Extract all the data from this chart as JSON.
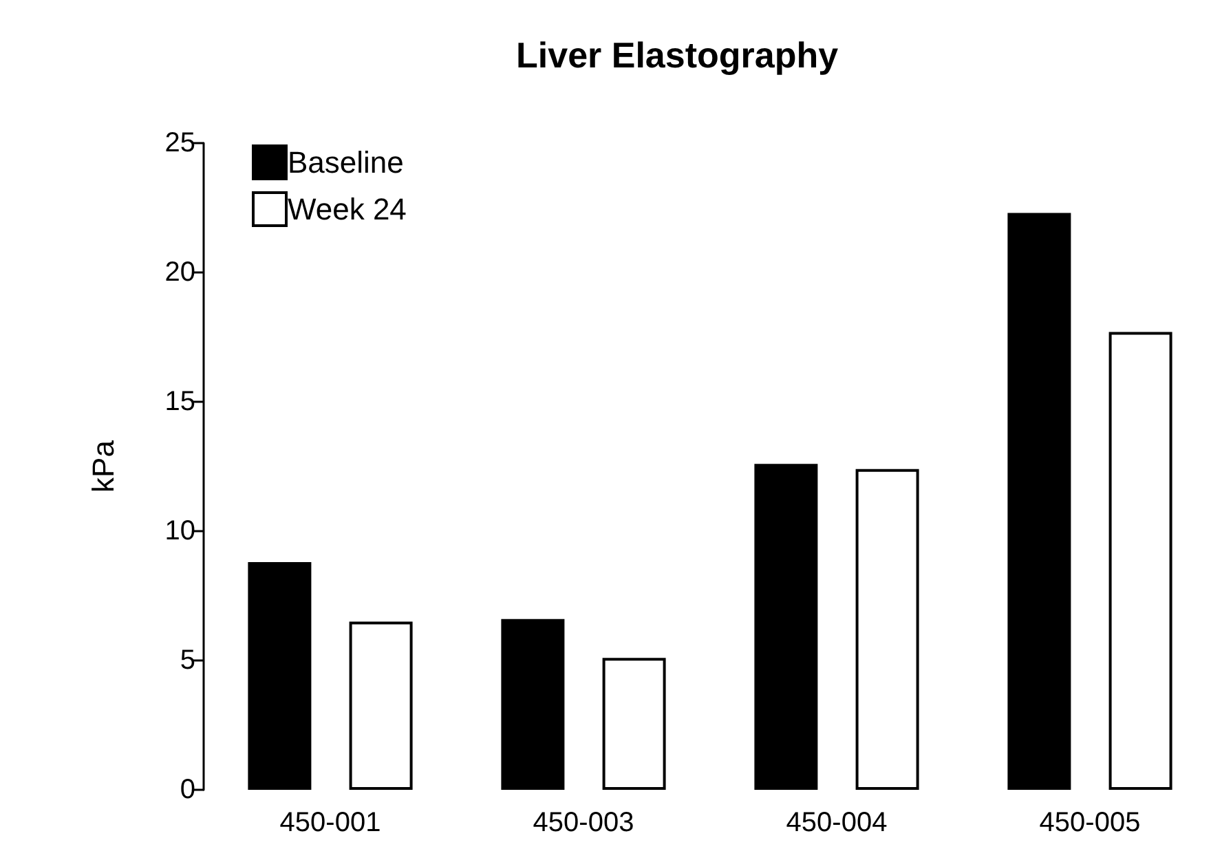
{
  "chart_data": {
    "type": "bar",
    "title": "Liver Elastography",
    "ylabel": "kPa",
    "categories": [
      "450-001",
      "450-003",
      "450-004",
      "450-005"
    ],
    "series": [
      {
        "name": "Baseline",
        "color": "#000000",
        "values": [
          8.8,
          6.6,
          12.6,
          22.3
        ]
      },
      {
        "name": "Week 24",
        "color": "#ffffff",
        "values": [
          6.5,
          5.1,
          12.4,
          17.7
        ]
      }
    ],
    "ylim": [
      0,
      25
    ],
    "yticks": [
      0,
      5,
      10,
      15,
      20,
      25
    ],
    "grid": false,
    "legend": "top left"
  }
}
